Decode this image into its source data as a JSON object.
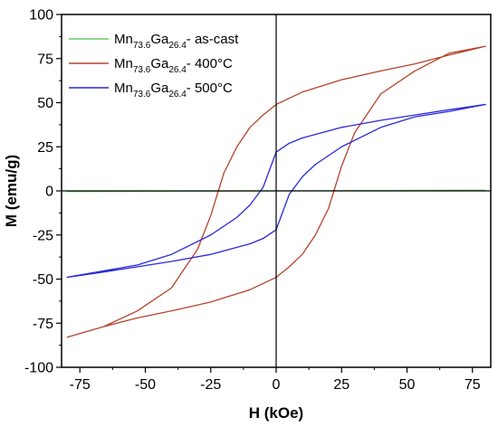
{
  "chart_data": {
    "type": "line",
    "xlabel": "H (kOe)",
    "ylabel": "M (emu/g)",
    "xlim": [
      -82,
      82
    ],
    "ylim": [
      -100,
      100
    ],
    "xticks": [
      -75,
      -50,
      -25,
      0,
      25,
      50,
      75
    ],
    "yticks": [
      -100,
      -75,
      -50,
      -25,
      0,
      25,
      50,
      75,
      100
    ],
    "zero_lines": true,
    "grid": false,
    "legend_position": "top-left",
    "series": [
      {
        "name": "Mn73.6Ga26.4- as-cast",
        "legend": {
          "base": "Mn",
          "sub1": "73.6",
          "mid": "Ga",
          "sub2": "26.4",
          "suffix": "- as-cast"
        },
        "color": "#66cc66",
        "points": [
          [
            -80,
            -0.4
          ],
          [
            -40,
            -0.2
          ],
          [
            0,
            0
          ],
          [
            40,
            0.2
          ],
          [
            80,
            0.4
          ]
        ]
      },
      {
        "name": "Mn73.6Ga26.4- 400°C",
        "legend": {
          "base": "Mn",
          "sub1": "73.6",
          "mid": "Ga",
          "sub2": "26.4",
          "suffix": "- 400°C"
        },
        "color": "#b5432a",
        "points": [
          [
            -80,
            -83
          ],
          [
            -66,
            -77
          ],
          [
            -53,
            -68
          ],
          [
            -40,
            -55
          ],
          [
            -30,
            -33
          ],
          [
            -25,
            -14
          ],
          [
            -20,
            10
          ],
          [
            -15,
            25
          ],
          [
            -10,
            36
          ],
          [
            -5,
            43
          ],
          [
            0,
            49
          ],
          [
            10,
            56
          ],
          [
            25,
            63
          ],
          [
            40,
            68
          ],
          [
            53,
            72
          ],
          [
            66,
            77
          ],
          [
            80,
            82
          ],
          [
            66,
            78
          ],
          [
            53,
            68
          ],
          [
            40,
            55
          ],
          [
            30,
            33
          ],
          [
            25,
            14
          ],
          [
            20,
            -10
          ],
          [
            15,
            -25
          ],
          [
            10,
            -36
          ],
          [
            5,
            -43
          ],
          [
            0,
            -49
          ],
          [
            -10,
            -56
          ],
          [
            -25,
            -63
          ],
          [
            -40,
            -68
          ],
          [
            -53,
            -72
          ],
          [
            -66,
            -77
          ],
          [
            -80,
            -83
          ]
        ]
      },
      {
        "name": "Mn73.6Ga26.4- 500°C",
        "legend": {
          "base": "Mn",
          "sub1": "73.6",
          "mid": "Ga",
          "sub2": "26.4",
          "suffix": "- 500°C"
        },
        "color": "#2a2ad8",
        "points": [
          [
            -80,
            -49
          ],
          [
            -53,
            -42
          ],
          [
            -40,
            -36
          ],
          [
            -25,
            -25
          ],
          [
            -15,
            -15
          ],
          [
            -10,
            -8
          ],
          [
            -5,
            2
          ],
          [
            0,
            22
          ],
          [
            5,
            27
          ],
          [
            10,
            30
          ],
          [
            25,
            36
          ],
          [
            40,
            40
          ],
          [
            53,
            43
          ],
          [
            66,
            46
          ],
          [
            80,
            49
          ],
          [
            66,
            45
          ],
          [
            53,
            42
          ],
          [
            40,
            36
          ],
          [
            25,
            25
          ],
          [
            15,
            15
          ],
          [
            10,
            8
          ],
          [
            5,
            -2
          ],
          [
            0,
            -22
          ],
          [
            -5,
            -27
          ],
          [
            -10,
            -30
          ],
          [
            -25,
            -36
          ],
          [
            -40,
            -40
          ],
          [
            -53,
            -43
          ],
          [
            -66,
            -46
          ],
          [
            -80,
            -49
          ]
        ]
      }
    ]
  }
}
